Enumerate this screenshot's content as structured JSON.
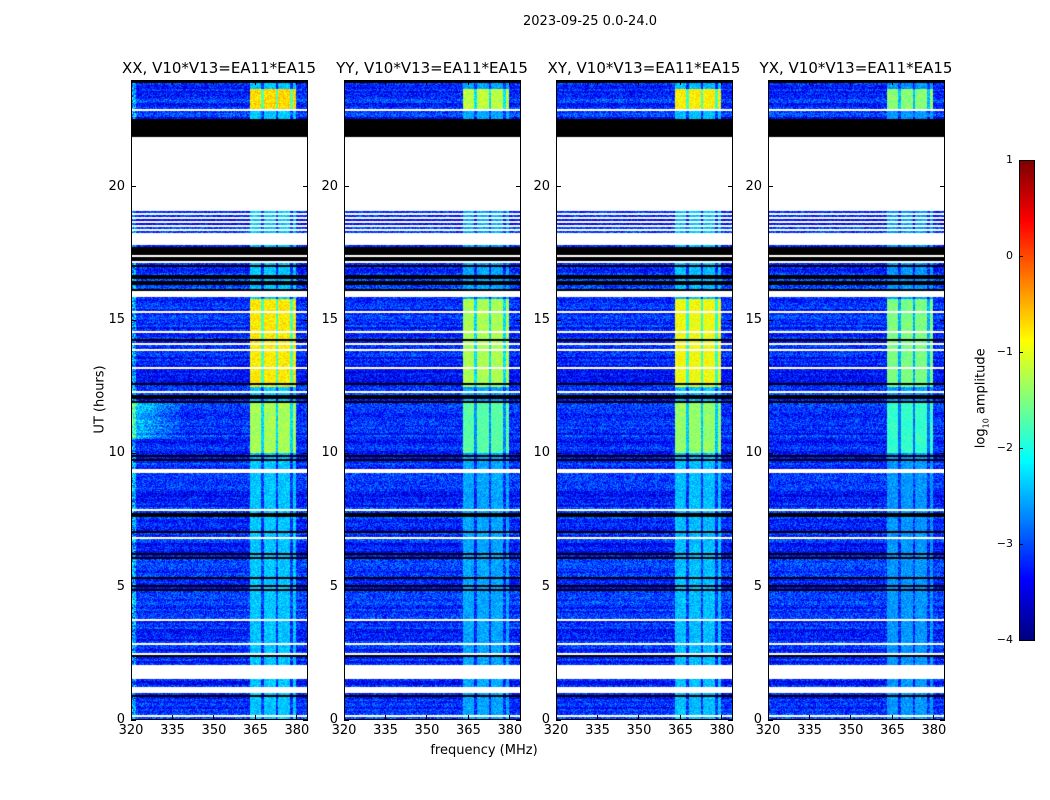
{
  "figure_title": "2023-09-25 0.0-24.0",
  "chart_data": {
    "type": "heatmap",
    "title": "2023-09-25 0.0-24.0",
    "xlabel": "frequency (MHz)",
    "ylabel": "UT (hours)",
    "xlim": [
      320,
      384
    ],
    "ylim": [
      0,
      24
    ],
    "xticks": [
      320,
      335,
      350,
      365,
      380
    ],
    "yticks": [
      0,
      5,
      10,
      15,
      20
    ],
    "panels": [
      {
        "title": "XX, V10*V13=EA11*EA15",
        "strength": 1.0
      },
      {
        "title": "YY, V10*V13=EA11*EA15",
        "strength": 0.8
      },
      {
        "title": "XY, V10*V13=EA11*EA15",
        "strength": 0.95
      },
      {
        "title": "YX, V10*V13=EA11*EA15",
        "strength": 0.7
      }
    ],
    "colorbar": {
      "label_prefix": "log",
      "label_sub": "10",
      "label_suffix": " amplitude",
      "range": [
        -4,
        1
      ],
      "ticks": [
        1,
        0,
        -1,
        -2,
        -3,
        -4
      ],
      "tick_labels": [
        "1",
        "0",
        "−1",
        "−2",
        "−3",
        "−4"
      ],
      "colormap": "jet"
    },
    "background_log_amplitude": -3.2,
    "rfi_band_mhz": [
      363,
      380
    ],
    "rfi_levels": [
      {
        "hours": [
          22.9,
          23.7
        ],
        "level": -0.7
      },
      {
        "hours": [
          12.5,
          15.8
        ],
        "level": -0.8
      },
      {
        "hours": [
          10.0,
          12.0
        ],
        "level": -1.3
      },
      {
        "hours": [
          0,
          24
        ],
        "level": -2.4
      }
    ],
    "flag_segments": [
      {
        "hours": [
          21.9,
          22.6
        ],
        "state": "black"
      },
      {
        "hours": [
          19.1,
          21.9
        ],
        "state": "blank"
      },
      {
        "hours": [
          18.3,
          19.1
        ],
        "state": "striped"
      },
      {
        "hours": [
          17.8,
          18.3
        ],
        "state": "blank"
      },
      {
        "hours": [
          16.1,
          17.8
        ],
        "state": "mixed"
      },
      {
        "hours": [
          15.9,
          16.1
        ],
        "state": "blank"
      },
      {
        "hours": [
          11.85,
          12.3
        ],
        "state": "mixed"
      },
      {
        "hours": [
          1.5,
          2.0
        ],
        "state": "blank"
      },
      {
        "hours": [
          1.0,
          1.2
        ],
        "state": "blank"
      }
    ]
  }
}
